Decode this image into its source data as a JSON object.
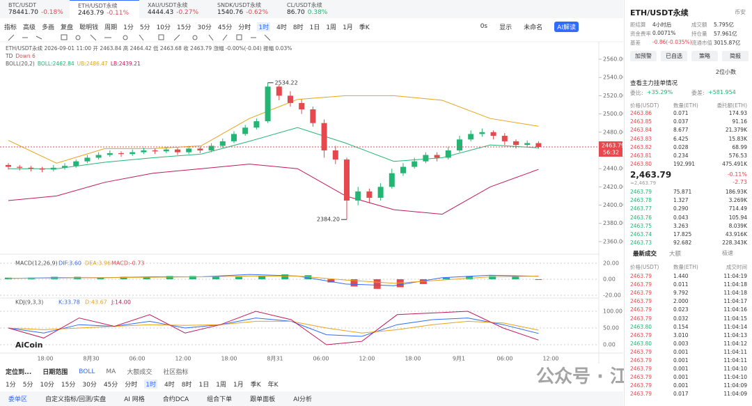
{
  "tabs": [
    {
      "name": "BTC/USDT",
      "price": "78441.70",
      "change": "-0.18%"
    },
    {
      "name": "ETH/USDT永续",
      "price": "2463.79",
      "change": "-0.11%"
    },
    {
      "name": "XAU/USDT永续",
      "price": "4444.43",
      "change": "-0.27%"
    },
    {
      "name": "SNDK/USDT永续",
      "price": "1540.76",
      "change": "-0.62%"
    },
    {
      "name": "CL/USDT永续",
      "price": "86.70",
      "change": "0.38%"
    }
  ],
  "toolbar": {
    "tools": [
      "指标",
      "高级",
      "多画",
      "复盘",
      "聪明钱",
      "周期"
    ],
    "periods": [
      "1分",
      "5分",
      "10分",
      "15分",
      "30分",
      "45分",
      "分时",
      "1时",
      "4时",
      "8时",
      "1日",
      "1周",
      "1月",
      "季K"
    ],
    "right": [
      "0s",
      "显示",
      "未命名",
      "AI解读"
    ]
  },
  "chart_data": {
    "type": "candlestick",
    "info": "ETH/USDT永续 2026-09-01 11:00 开 2463.84 高 2464.42 低 2463.68 收 2463.79 涨幅 -0.00%(-0.04) 振幅 0.03%",
    "td": "TD",
    "td_value": "Down 6",
    "boll_label": "BOLL(20,2)",
    "boll_values": [
      "BOLL:2462.84",
      "UB:2486.47",
      "LB:2439.21"
    ],
    "candles": [
      [
        2444,
        2446,
        2439,
        2442
      ],
      [
        2442,
        2444,
        2438,
        2441
      ],
      [
        2441,
        2443,
        2437,
        2440
      ],
      [
        2440,
        2442,
        2436,
        2439
      ],
      [
        2439,
        2444,
        2437,
        2441
      ],
      [
        2441,
        2446,
        2439,
        2443
      ],
      [
        2443,
        2450,
        2441,
        2448
      ],
      [
        2448,
        2455,
        2446,
        2452
      ],
      [
        2452,
        2458,
        2450,
        2455
      ],
      [
        2455,
        2460,
        2453,
        2457
      ],
      [
        2457,
        2459,
        2453,
        2456
      ],
      [
        2456,
        2461,
        2454,
        2458
      ],
      [
        2458,
        2463,
        2456,
        2460
      ],
      [
        2460,
        2462,
        2456,
        2459
      ],
      [
        2459,
        2464,
        2457,
        2461
      ],
      [
        2461,
        2463,
        2455,
        2458
      ],
      [
        2458,
        2465,
        2456,
        2462
      ],
      [
        2462,
        2464,
        2457,
        2460
      ],
      [
        2460,
        2468,
        2458,
        2465
      ],
      [
        2465,
        2473,
        2463,
        2470
      ],
      [
        2470,
        2481,
        2468,
        2478
      ],
      [
        2478,
        2488,
        2476,
        2485
      ],
      [
        2485,
        2495,
        2483,
        2492
      ],
      [
        2492,
        2534.22,
        2490,
        2530
      ],
      [
        2530,
        2532,
        2515,
        2520
      ],
      [
        2520,
        2525,
        2508,
        2512
      ],
      [
        2512,
        2516,
        2500,
        2505
      ],
      [
        2505,
        2508,
        2486,
        2490
      ],
      [
        2490,
        2494,
        2452,
        2460
      ],
      [
        2460,
        2465,
        2445,
        2450
      ],
      [
        2450,
        2452,
        2384.2,
        2405
      ],
      [
        2405,
        2420,
        2400,
        2415
      ],
      [
        2415,
        2418,
        2402,
        2408
      ],
      [
        2408,
        2424,
        2405,
        2420
      ],
      [
        2420,
        2440,
        2418,
        2435
      ],
      [
        2435,
        2446,
        2432,
        2442
      ],
      [
        2442,
        2452,
        2440,
        2448
      ],
      [
        2448,
        2458,
        2446,
        2455
      ],
      [
        2455,
        2458,
        2448,
        2452
      ],
      [
        2452,
        2464,
        2450,
        2460
      ],
      [
        2460,
        2476,
        2458,
        2472
      ],
      [
        2472,
        2482,
        2470,
        2478
      ],
      [
        2478,
        2484,
        2475,
        2480
      ],
      [
        2480,
        2482,
        2472,
        2476
      ],
      [
        2476,
        2479,
        2466,
        2470
      ],
      [
        2470,
        2472,
        2462,
        2466
      ],
      [
        2466,
        2471,
        2464,
        2468
      ],
      [
        2468,
        2470,
        2462,
        2463.79
      ]
    ],
    "up_color": "#22b573",
    "down_color": "#e5484d",
    "ylim": [
      2350,
      2565
    ],
    "yticks": [
      {
        "value": 2560,
        "label": "2560.00"
      },
      {
        "value": 2540,
        "label": "2540.00"
      },
      {
        "value": 2520,
        "label": "2520.00"
      },
      {
        "value": 2500,
        "label": "2500.00"
      },
      {
        "value": 2480,
        "label": "2480.00"
      },
      {
        "value": 2440,
        "label": "2440.00"
      },
      {
        "value": 2420,
        "label": "2420.00"
      },
      {
        "value": 2400,
        "label": "2400.00"
      },
      {
        "value": 2380,
        "label": "2380.00"
      },
      {
        "value": 2360,
        "label": "2360.00"
      }
    ],
    "high": {
      "value": 2534.22,
      "label": "2534.22"
    },
    "low": {
      "value": 2384.2,
      "label": "2384.20"
    },
    "last": {
      "value": 2463.79,
      "label": "2463.79"
    },
    "countdown": "56:32",
    "boll": {
      "upper": [
        2471,
        2446,
        2462,
        2462,
        2465,
        2495,
        2516,
        2520,
        2520,
        2515,
        2495,
        2486.47
      ],
      "mid": [
        2440,
        2440,
        2447,
        2452,
        2456,
        2470,
        2485,
        2468,
        2448,
        2452,
        2466,
        2462.84
      ],
      "lower": [
        2405,
        2410,
        2425,
        2435,
        2440,
        2445,
        2440,
        2410,
        2395,
        2390,
        2420,
        2439.21
      ]
    },
    "xlabels": [
      "18:00",
      "8月30",
      "06:00",
      "12:00",
      "18:00",
      "8月31",
      "06:00",
      "12:00",
      "18:00",
      "9月1",
      "06:00",
      "12:00"
    ]
  },
  "macd": {
    "label": "MACD(12,26,9)",
    "values_text": [
      "DIF:3.60",
      "DEA:3.96",
      "MACD:-0.73"
    ],
    "ylim": [
      -23.5,
      25.2
    ],
    "yticks": [
      {
        "value": 20,
        "label": "20.00"
      },
      {
        "value": 0,
        "label": "0.00"
      },
      {
        "value": -20,
        "label": "-20.00"
      }
    ],
    "histogram": [
      2,
      2,
      3,
      3,
      2,
      3,
      3,
      4,
      4,
      3,
      3,
      4,
      6,
      5,
      -4,
      -9,
      -12,
      -10,
      -6,
      2,
      4,
      4,
      3,
      -0.73
    ],
    "dif": [
      1,
      2,
      2,
      3,
      3,
      6,
      4,
      -6,
      -8,
      2,
      5,
      3.6
    ],
    "dea": [
      1,
      1.5,
      2,
      2.5,
      3,
      4,
      4,
      -1,
      -5,
      -1,
      3,
      3.96
    ]
  },
  "kdj": {
    "label": "KDJ(9,3,3)",
    "values_text": [
      "K:33.78",
      "D:43.67",
      "J:14.00"
    ],
    "ylim": [
      -20.8,
      125
    ],
    "yticks": [
      {
        "value": 100,
        "label": "100.00"
      },
      {
        "value": 50,
        "label": "50.00"
      },
      {
        "value": 0,
        "label": "0.00"
      }
    ],
    "k": [
      50,
      35,
      60,
      55,
      70,
      50,
      60,
      80,
      70,
      30,
      25,
      60,
      75,
      80,
      60,
      33.78
    ],
    "d": [
      50,
      45,
      50,
      55,
      60,
      58,
      60,
      70,
      70,
      50,
      35,
      45,
      60,
      70,
      65,
      43.67
    ],
    "j": [
      50,
      20,
      80,
      55,
      90,
      35,
      60,
      100,
      75,
      0,
      10,
      90,
      95,
      100,
      50,
      14
    ]
  },
  "logo": "AiCoin",
  "bottom_bar": [
    "定位到...",
    "日期范围",
    "BOLL",
    "MA",
    "大额成交",
    "社区指标"
  ],
  "bottom_periods": [
    "1分",
    "5分",
    "10分",
    "15分",
    "30分",
    "45分",
    "分时",
    "1时",
    "4时",
    "8时",
    "1日",
    "1周",
    "1月",
    "季K",
    "年K"
  ],
  "footer": [
    "委单区",
    "自定义指标/回测/实盘",
    "AI 网格",
    "合约DCA",
    "组合下单",
    "跟单面板",
    "AI分析"
  ],
  "watermark": "公众号 · 江野观策",
  "panel": {
    "symbol": "ETH/USDT永续",
    "exchange": "币安",
    "stats": [
      [
        "距结算",
        "4小时后"
      ],
      [
        "成交额",
        "5.795亿"
      ],
      [
        "资金费率",
        "0.0071%"
      ],
      [
        "持仓量",
        "57.961亿"
      ],
      [
        "基差",
        "-0.86(-0.035%)"
      ],
      [
        "流通市值",
        "3015.87亿"
      ]
    ],
    "buttons": [
      "加预警",
      "已自选",
      "策略",
      "简报"
    ],
    "decimals": "2位小数",
    "main_orders": "查看主力挂单情况",
    "ratio": [
      "委比:",
      "+35.29%"
    ],
    "diff": [
      "委差:",
      "+581.954"
    ],
    "book_headers": [
      "价格(USDT)",
      "数量(ETH)",
      "委托额(ETH)"
    ],
    "asks": [
      [
        "2463.86",
        "0.071",
        "174.93"
      ],
      [
        "2463.85",
        "0.037",
        "91.16"
      ],
      [
        "2463.84",
        "8.677",
        "21.379K"
      ],
      [
        "2463.83",
        "6.425",
        "15.83K"
      ],
      [
        "2463.82",
        "0.028",
        "68.99"
      ],
      [
        "2463.81",
        "0.234",
        "576.53"
      ],
      [
        "2463.80",
        "192.991",
        "475.491K"
      ]
    ],
    "mid_price": "2,463.79",
    "mid_sub": "≈2,463.79",
    "mid_change": "-0.11%",
    "mid_diff": "-2.73",
    "bids": [
      [
        "2463.79",
        "75.871",
        "186.93K"
      ],
      [
        "2463.78",
        "1.327",
        "3.269K"
      ],
      [
        "2463.77",
        "0.290",
        "714.49"
      ],
      [
        "2463.76",
        "0.043",
        "105.94"
      ],
      [
        "2463.75",
        "3.263",
        "8.039K"
      ],
      [
        "2463.74",
        "17.825",
        "43.916K"
      ],
      [
        "2463.73",
        "92.682",
        "228.343K"
      ]
    ],
    "trade_tabs": [
      "最新成交",
      "大额"
    ],
    "fast": "极速",
    "trade_headers": [
      "价格(USDT)",
      "数量(ETH)",
      "成交时间"
    ],
    "trades": [
      [
        "2463.79",
        "1.440",
        "11:04:19"
      ],
      [
        "2463.79",
        "0.011",
        "11:04:18"
      ],
      [
        "2463.79",
        "9.792",
        "11:04:18"
      ],
      [
        "2463.79",
        "2.000",
        "11:04:17"
      ],
      [
        "2463.79",
        "0.023",
        "11:04:16"
      ],
      [
        "2463.79",
        "0.032",
        "11:04:15"
      ],
      [
        "2463.80",
        "0.154",
        "11:04:14"
      ],
      [
        "2463.79",
        "3.010",
        "11:04:13"
      ],
      [
        "2463.80",
        "0.003",
        "11:04:12"
      ],
      [
        "2463.79",
        "0.001",
        "11:04:11"
      ],
      [
        "2463.79",
        "0.001",
        "11:04:11"
      ],
      [
        "2463.79",
        "0.001",
        "11:04:10"
      ],
      [
        "2463.79",
        "0.001",
        "11:04:10"
      ],
      [
        "2463.79",
        "0.001",
        "11:04:09"
      ],
      [
        "2463.79",
        "0.017",
        "11:04:09"
      ]
    ]
  }
}
